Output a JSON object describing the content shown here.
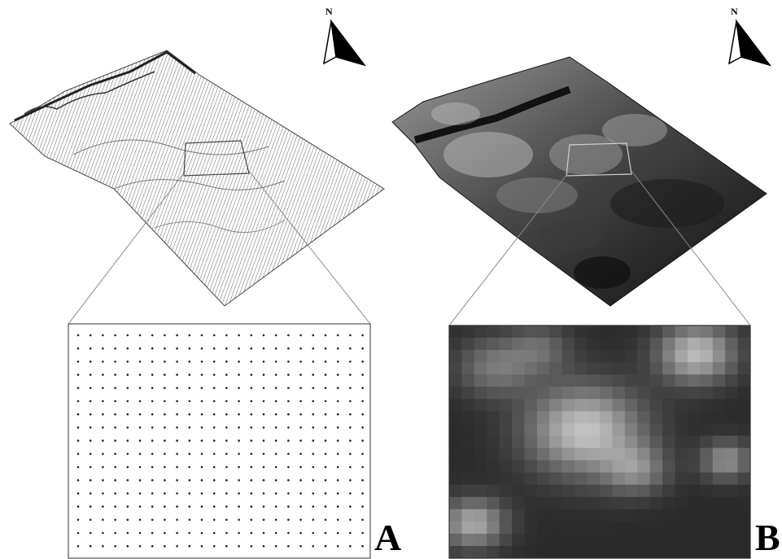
{
  "panels": [
    {
      "id": "A",
      "label": "A",
      "north": "N",
      "style": "point-grid"
    },
    {
      "id": "B",
      "label": "B",
      "north": "N",
      "style": "raster-grid"
    }
  ],
  "colors": {
    "background": "#ffffff",
    "line": "#000000",
    "zoom_line": "#8a8a8a",
    "raster_dark": "#1a1a1a",
    "raster_light": "#b8b8b8"
  }
}
